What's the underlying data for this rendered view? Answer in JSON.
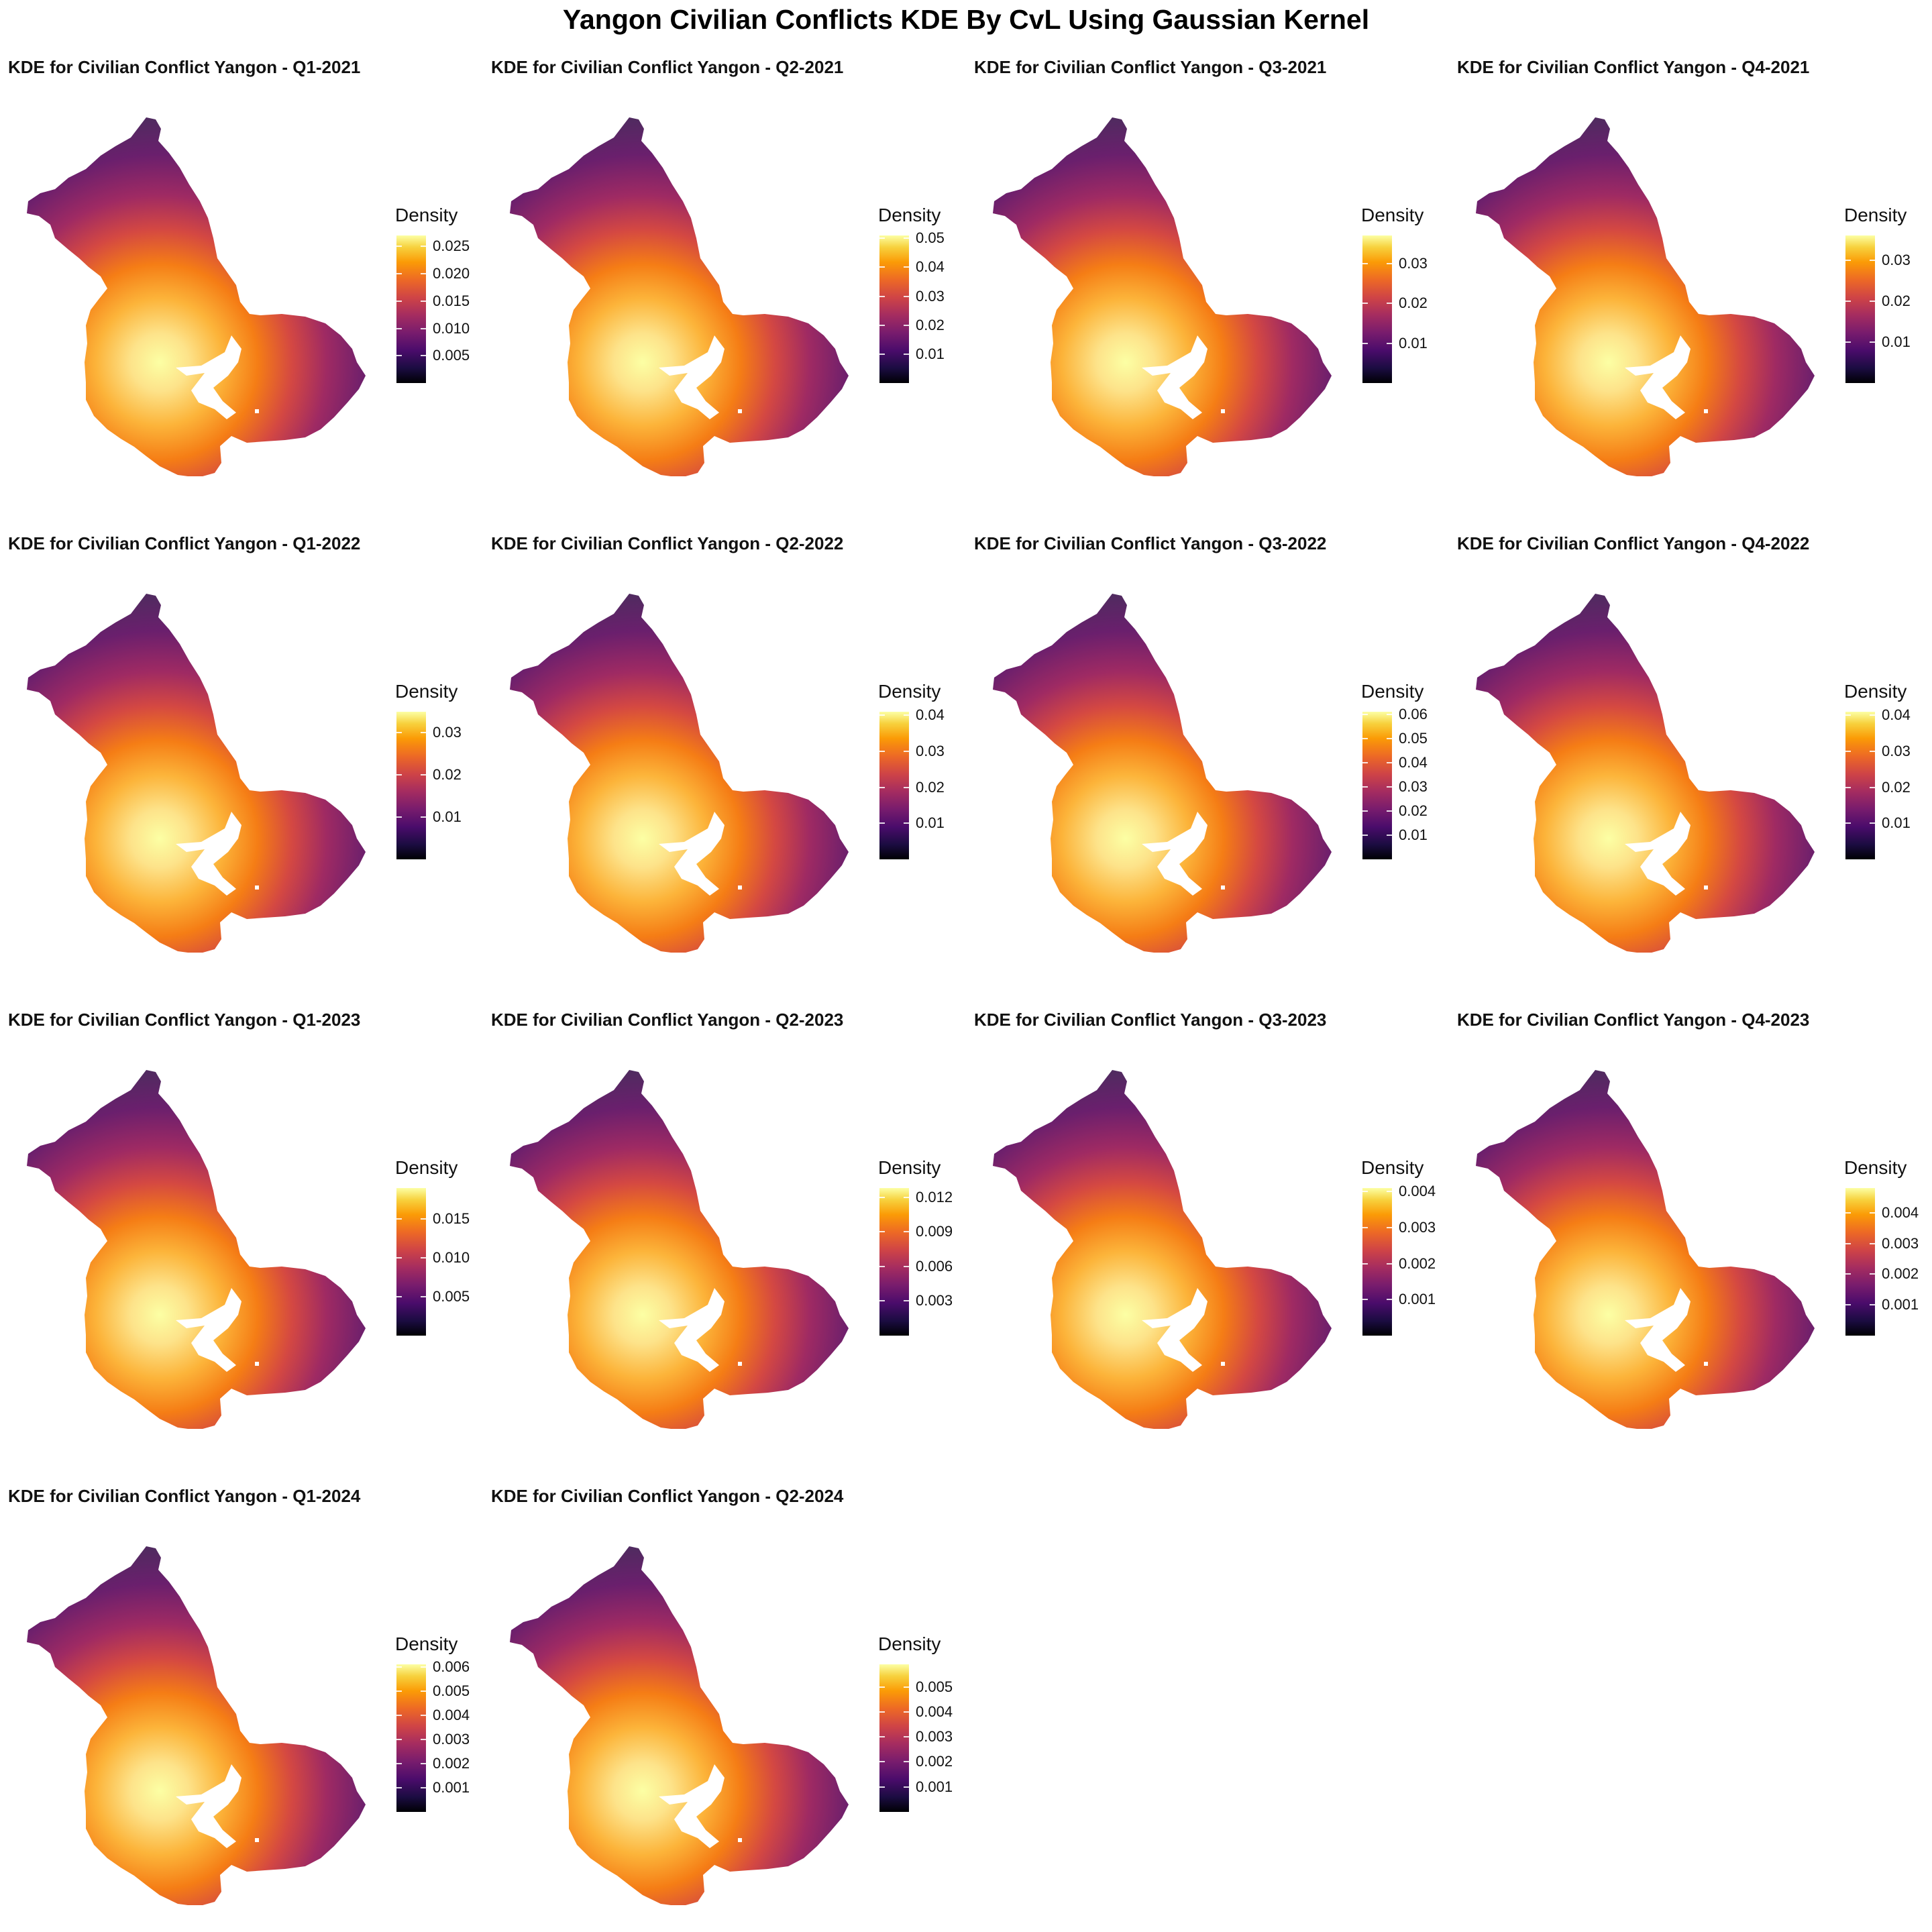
{
  "title": "Yangon  Civilian Conflicts KDE By CvL Using Gaussian Kernel",
  "legend_title": "Density",
  "colormap": "inferno",
  "colors": {
    "low": "#000004",
    "high": "#fcffa4",
    "outside_region": "#3b3039"
  },
  "panels": [
    {
      "title": "KDE for Civilian Conflict Yangon - Q1-2021",
      "max": 0.027,
      "ticks": [
        "0.005",
        "0.010",
        "0.015",
        "0.020",
        "0.025"
      ],
      "tick_values": [
        0.005,
        0.01,
        0.015,
        0.02,
        0.025
      ]
    },
    {
      "title": "KDE for Civilian Conflict Yangon - Q2-2021",
      "max": 0.051,
      "ticks": [
        "0.01",
        "0.02",
        "0.03",
        "0.04",
        "0.05"
      ],
      "tick_values": [
        0.01,
        0.02,
        0.03,
        0.04,
        0.05
      ]
    },
    {
      "title": "KDE for Civilian Conflict Yangon - Q3-2021",
      "max": 0.037,
      "ticks": [
        "0.01",
        "0.02",
        "0.03"
      ],
      "tick_values": [
        0.01,
        0.02,
        0.03
      ]
    },
    {
      "title": "KDE for Civilian Conflict Yangon - Q4-2021",
      "max": 0.036,
      "ticks": [
        "0.01",
        "0.02",
        "0.03"
      ],
      "tick_values": [
        0.01,
        0.02,
        0.03
      ]
    },
    {
      "title": "KDE for Civilian Conflict Yangon - Q1-2022",
      "max": 0.035,
      "ticks": [
        "0.01",
        "0.02",
        "0.03"
      ],
      "tick_values": [
        0.01,
        0.02,
        0.03
      ]
    },
    {
      "title": "KDE for Civilian Conflict Yangon - Q2-2022",
      "max": 0.041,
      "ticks": [
        "0.01",
        "0.02",
        "0.03",
        "0.04"
      ],
      "tick_values": [
        0.01,
        0.02,
        0.03,
        0.04
      ]
    },
    {
      "title": "KDE for Civilian Conflict Yangon - Q3-2022",
      "max": 0.061,
      "ticks": [
        "0.01",
        "0.02",
        "0.03",
        "0.04",
        "0.05",
        "0.06"
      ],
      "tick_values": [
        0.01,
        0.02,
        0.03,
        0.04,
        0.05,
        0.06
      ]
    },
    {
      "title": "KDE for Civilian Conflict Yangon - Q4-2022",
      "max": 0.041,
      "ticks": [
        "0.01",
        "0.02",
        "0.03",
        "0.04"
      ],
      "tick_values": [
        0.01,
        0.02,
        0.03,
        0.04
      ]
    },
    {
      "title": "KDE for Civilian Conflict Yangon - Q1-2023",
      "max": 0.019,
      "ticks": [
        "0.005",
        "0.010",
        "0.015"
      ],
      "tick_values": [
        0.005,
        0.01,
        0.015
      ]
    },
    {
      "title": "KDE for Civilian Conflict Yangon - Q2-2023",
      "max": 0.0128,
      "ticks": [
        "0.003",
        "0.006",
        "0.009",
        "0.012"
      ],
      "tick_values": [
        0.003,
        0.006,
        0.009,
        0.012
      ]
    },
    {
      "title": "KDE for Civilian Conflict Yangon - Q3-2023",
      "max": 0.0041,
      "ticks": [
        "0.001",
        "0.002",
        "0.003",
        "0.004"
      ],
      "tick_values": [
        0.001,
        0.002,
        0.003,
        0.004
      ]
    },
    {
      "title": "KDE for Civilian Conflict Yangon - Q4-2023",
      "max": 0.0048,
      "ticks": [
        "0.001",
        "0.002",
        "0.003",
        "0.004"
      ],
      "tick_values": [
        0.001,
        0.002,
        0.003,
        0.004
      ]
    },
    {
      "title": "KDE for Civilian Conflict Yangon - Q1-2024",
      "max": 0.0061,
      "ticks": [
        "0.001",
        "0.002",
        "0.003",
        "0.004",
        "0.005",
        "0.006"
      ],
      "tick_values": [
        0.001,
        0.002,
        0.003,
        0.004,
        0.005,
        0.006
      ]
    },
    {
      "title": "KDE for Civilian Conflict Yangon - Q2-2024",
      "max": 0.0059,
      "ticks": [
        "0.001",
        "0.002",
        "0.003",
        "0.004",
        "0.005"
      ],
      "tick_values": [
        0.001,
        0.002,
        0.003,
        0.004,
        0.005
      ]
    }
  ]
}
